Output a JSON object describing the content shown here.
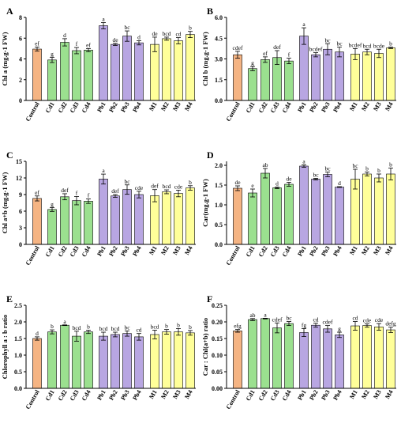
{
  "colors": {
    "Control": "#f5b483",
    "Cd": "#9be08f",
    "Pb": "#b8a6e2",
    "M": "#ffff99",
    "stroke": "#000000"
  },
  "chart_data": [
    {
      "type": "bar",
      "panel": "A",
      "ylabel": "Chl a (mg.g-1 FW)",
      "ylim": [
        0,
        8
      ],
      "yticks": [
        0,
        2,
        4,
        6,
        8
      ],
      "ytick_labels": [
        "0",
        "2",
        "4",
        "6",
        "8"
      ],
      "categories": [
        "Control",
        "Cd1",
        "Cd2",
        "Cd3",
        "Cd4",
        "Pb1",
        "Pb2",
        "Pb3",
        "Pb4",
        "M1",
        "M2",
        "M3",
        "M4"
      ],
      "values": [
        4.95,
        3.9,
        5.6,
        4.8,
        4.85,
        7.2,
        5.4,
        6.2,
        5.55,
        5.4,
        5.95,
        5.75,
        6.35
      ],
      "errors": [
        0.2,
        0.25,
        0.35,
        0.3,
        0.15,
        0.3,
        0.1,
        0.5,
        0.2,
        0.7,
        0.15,
        0.3,
        0.3
      ],
      "letters": [
        "ef",
        "g",
        "d",
        "f",
        "ef",
        "a",
        "de",
        "bc",
        "d",
        "de",
        "bcd",
        "cd",
        "b"
      ]
    },
    {
      "type": "bar",
      "panel": "B",
      "ylabel": "Chl b (mg.g-1 FW)",
      "ylim": [
        0,
        6
      ],
      "yticks": [
        0,
        1.5,
        3,
        4.5,
        6
      ],
      "ytick_labels": [
        "0.0",
        "1.5",
        "3.0",
        "4.5",
        "6.0"
      ],
      "categories": [
        "Control",
        "Cd1",
        "Cd2",
        "Cd3",
        "Cd4",
        "Pb1",
        "Pb2",
        "Pb3",
        "Pb4",
        "M1",
        "M2",
        "M3",
        "M4"
      ],
      "values": [
        3.3,
        2.3,
        2.95,
        3.1,
        2.85,
        4.65,
        3.3,
        3.7,
        3.5,
        3.35,
        3.5,
        3.4,
        3.8
      ],
      "errors": [
        0.25,
        0.15,
        0.2,
        0.5,
        0.2,
        0.6,
        0.15,
        0.4,
        0.35,
        0.4,
        0.2,
        0.3,
        0.05
      ],
      "letters": [
        "cdef",
        "g",
        "ef",
        "def",
        "f",
        "a",
        "bcdef",
        "bc",
        "bc",
        "bcdef",
        "bcd",
        "bcde",
        "b"
      ]
    },
    {
      "type": "bar",
      "panel": "C",
      "ylabel": "Chl a+b (mg.g-1 FW)",
      "ylim": [
        0,
        15
      ],
      "yticks": [
        0,
        3,
        6,
        9,
        12,
        15
      ],
      "ytick_labels": [
        "0",
        "3",
        "6",
        "9",
        "12",
        "15"
      ],
      "categories": [
        "Control",
        "Cd1",
        "Cd2",
        "Cd3",
        "Cd4",
        "Pb1",
        "Pb2",
        "Pb3",
        "Pb4",
        "M1",
        "M2",
        "M3",
        "M4"
      ],
      "values": [
        8.3,
        6.3,
        8.6,
        7.9,
        7.8,
        11.8,
        8.75,
        9.9,
        9.0,
        8.8,
        9.5,
        9.2,
        10.2
      ],
      "errors": [
        0.45,
        0.35,
        0.55,
        0.75,
        0.4,
        0.9,
        0.25,
        0.85,
        0.6,
        1.1,
        0.35,
        0.6,
        0.4
      ],
      "letters": [
        "ef",
        "g",
        "def",
        "f",
        "f",
        "a",
        "def",
        "bc",
        "cde",
        "def",
        "bcd",
        "cde",
        "b"
      ]
    },
    {
      "type": "bar",
      "panel": "D",
      "ylabel": "Car(mg.g-1 FW)",
      "ylim": [
        0,
        2.1
      ],
      "yticks": [
        0,
        0.5,
        1.0,
        1.5,
        2.0
      ],
      "ytick_labels": [
        "0.0",
        "0.5",
        "1.0",
        "1.5",
        "2.0"
      ],
      "categories": [
        "Control",
        "Cd1",
        "Cd2",
        "Cd3",
        "Cd4",
        "Pb1",
        "Pb2",
        "Pb3",
        "Pb4",
        "M1",
        "M2",
        "M3",
        "M4"
      ],
      "values": [
        1.42,
        1.3,
        1.8,
        1.43,
        1.52,
        1.98,
        1.65,
        1.77,
        1.45,
        1.65,
        1.78,
        1.68,
        1.78
      ],
      "errors": [
        0.06,
        0.1,
        0.12,
        0.02,
        0.05,
        0.03,
        0.02,
        0.06,
        0.01,
        0.25,
        0.05,
        0.1,
        0.15
      ],
      "letters": [
        "de",
        "e",
        "ab",
        "d",
        "de",
        "a",
        "bc",
        "bc",
        "d",
        "bc",
        "b",
        "b",
        "b"
      ]
    },
    {
      "type": "bar",
      "panel": "E",
      "ylabel": "Chlorophyll a : b ratio",
      "ylim": [
        0,
        2.5
      ],
      "yticks": [
        0,
        0.5,
        1.0,
        1.5,
        2.0,
        2.5
      ],
      "ytick_labels": [
        "0.0",
        "0.5",
        "1.0",
        "1.5",
        "2.0",
        "2.5"
      ],
      "categories": [
        "Control",
        "Cd1",
        "Cd2",
        "Cd3",
        "Cd4",
        "Pb1",
        "Pb2",
        "Pb3",
        "Pb4",
        "M1",
        "M2",
        "M3",
        "M4"
      ],
      "values": [
        1.5,
        1.7,
        1.9,
        1.57,
        1.7,
        1.57,
        1.62,
        1.65,
        1.55,
        1.62,
        1.7,
        1.7,
        1.67
      ],
      "errors": [
        0.05,
        0.06,
        0.01,
        0.15,
        0.05,
        0.12,
        0.07,
        0.08,
        0.1,
        0.13,
        0.07,
        0.1,
        0.07
      ],
      "letters": [
        "d",
        "b",
        "a",
        "bcd",
        "b",
        "bcd",
        "bcd",
        "bc",
        "cd",
        "bcd",
        "b",
        "b",
        "b"
      ]
    },
    {
      "type": "bar",
      "panel": "F",
      "ylabel": "Car : Chl(a+b) ratio",
      "ylim": [
        0,
        0.25
      ],
      "yticks": [
        0,
        0.05,
        0.1,
        0.15,
        0.2,
        0.25
      ],
      "ytick_labels": [
        "0.00",
        "0.05",
        "0.10",
        "0.15",
        "0.20",
        "0.25"
      ],
      "categories": [
        "Control",
        "Cd1",
        "Cd2",
        "Cd3",
        "Cd4",
        "Pb1",
        "Pb2",
        "Pb3",
        "Pb4",
        "M1",
        "M2",
        "M3",
        "M4"
      ],
      "values": [
        0.173,
        0.207,
        0.21,
        0.182,
        0.195,
        0.168,
        0.19,
        0.179,
        0.161,
        0.188,
        0.189,
        0.185,
        0.176
      ],
      "errors": [
        0.004,
        0.003,
        0.001,
        0.015,
        0.006,
        0.012,
        0.006,
        0.01,
        0.008,
        0.013,
        0.005,
        0.01,
        0.008
      ],
      "letters": [
        "efg",
        "ab",
        "a",
        "cdef",
        "bc",
        "fg",
        "cd",
        "cdef",
        "g",
        "cd",
        "cde",
        "cde",
        "defg"
      ]
    }
  ]
}
